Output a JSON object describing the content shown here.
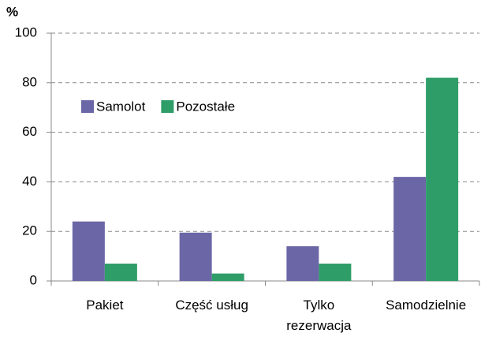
{
  "chart_data": {
    "type": "bar",
    "y_label": "%",
    "categories": [
      "Pakiet",
      "Część usług",
      "Tylko rezerwacja",
      "Samodzielnie"
    ],
    "series": [
      {
        "name": "Samolot",
        "color": "#6b67a6",
        "values": [
          24,
          19.5,
          14,
          42
        ]
      },
      {
        "name": "Pozostałe",
        "color": "#2f9d68",
        "values": [
          7,
          3,
          7,
          82
        ]
      }
    ],
    "ylim": [
      0,
      100
    ],
    "yticks": [
      0,
      20,
      40,
      60,
      80,
      100
    ],
    "grid": true,
    "legend": "upper left"
  }
}
